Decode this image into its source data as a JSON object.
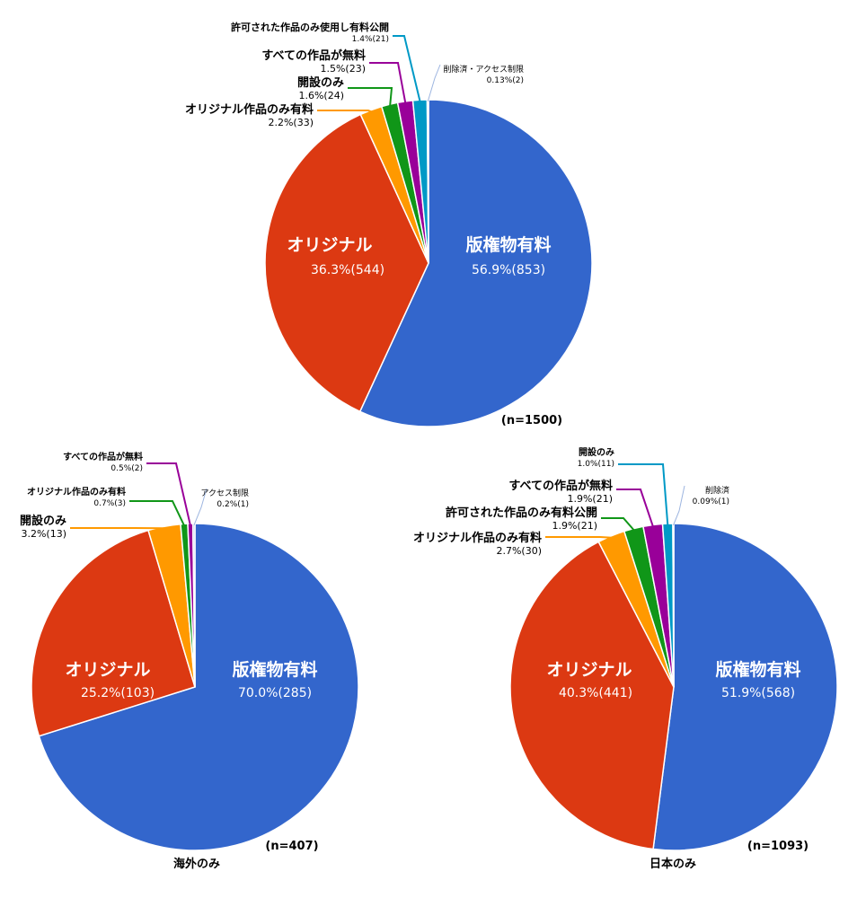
{
  "chart_data": [
    {
      "type": "pie",
      "title": "",
      "n_label": "(n=1500)",
      "footer": "",
      "slices": [
        {
          "label": "版権物有料",
          "pct": "56.9%",
          "count": 853,
          "value": 56.9,
          "color": "#3366cc"
        },
        {
          "label": "オリジナル",
          "pct": "36.3%",
          "count": 544,
          "value": 36.3,
          "color": "#dc3912"
        },
        {
          "label": "オリジナル作品のみ有料",
          "pct": "2.2%",
          "count": 33,
          "value": 2.2,
          "color": "#ff9900"
        },
        {
          "label": "開設のみ",
          "pct": "1.6%",
          "count": 24,
          "value": 1.6,
          "color": "#109618"
        },
        {
          "label": "すべての作品が無料",
          "pct": "1.5%",
          "count": 23,
          "value": 1.5,
          "color": "#990099"
        },
        {
          "label": "許可された作品のみ使用し有料公開",
          "pct": "1.4%",
          "count": 21,
          "value": 1.4,
          "color": "#0099c6"
        },
        {
          "label": "削除済・アクセス制限",
          "pct": "0.13%",
          "count": 2,
          "value": 0.13,
          "color": "#b4c7e7"
        }
      ]
    },
    {
      "type": "pie",
      "title": "",
      "n_label": "(n=407)",
      "footer": "海外のみ",
      "slices": [
        {
          "label": "版権物有料",
          "pct": "70.0%",
          "count": 285,
          "value": 70.0,
          "color": "#3366cc"
        },
        {
          "label": "オリジナル",
          "pct": "25.2%",
          "count": 103,
          "value": 25.2,
          "color": "#dc3912"
        },
        {
          "label": "開設のみ",
          "pct": "3.2%",
          "count": 13,
          "value": 3.2,
          "color": "#ff9900"
        },
        {
          "label": "オリジナル作品のみ有料",
          "pct": "0.7%",
          "count": 3,
          "value": 0.7,
          "color": "#109618"
        },
        {
          "label": "すべての作品が無料",
          "pct": "0.5%",
          "count": 2,
          "value": 0.5,
          "color": "#990099"
        },
        {
          "label": "アクセス制限",
          "pct": "0.2%",
          "count": 1,
          "value": 0.2,
          "color": "#b4c7e7"
        }
      ]
    },
    {
      "type": "pie",
      "title": "",
      "n_label": "(n=1093)",
      "footer": "日本のみ",
      "slices": [
        {
          "label": "版権物有料",
          "pct": "51.9%",
          "count": 568,
          "value": 51.9,
          "color": "#3366cc"
        },
        {
          "label": "オリジナル",
          "pct": "40.3%",
          "count": 441,
          "value": 40.3,
          "color": "#dc3912"
        },
        {
          "label": "オリジナル作品のみ有料",
          "pct": "2.7%",
          "count": 30,
          "value": 2.7,
          "color": "#ff9900"
        },
        {
          "label": "許可された作品のみ有料公開",
          "pct": "1.9%",
          "count": 21,
          "value": 1.9,
          "color": "#109618"
        },
        {
          "label": "すべての作品が無料",
          "pct": "1.9%",
          "count": 21,
          "value": 1.9,
          "color": "#990099"
        },
        {
          "label": "開設のみ",
          "pct": "1.0%",
          "count": 11,
          "value": 1.0,
          "color": "#0099c6"
        },
        {
          "label": "削除済",
          "pct": "0.09%",
          "count": 1,
          "value": 0.09,
          "color": "#b4c7e7"
        }
      ]
    }
  ]
}
